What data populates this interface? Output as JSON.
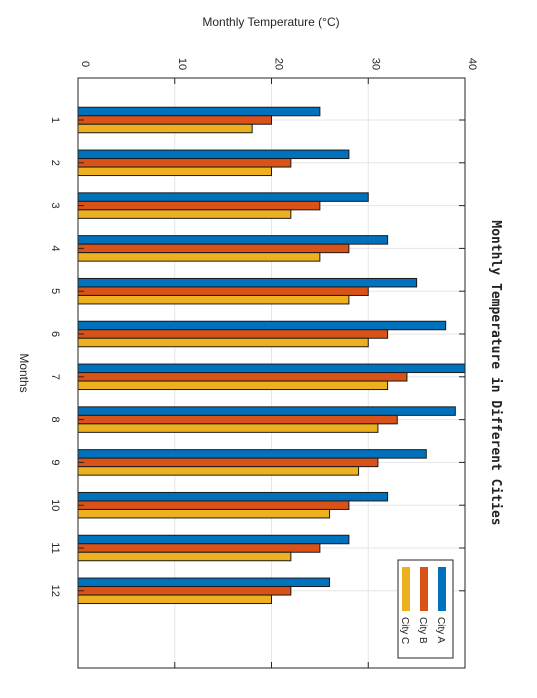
{
  "chart_data": {
    "type": "bar",
    "orientation": "rotated-grouped-bar",
    "title": "Monthly Temperature in Different Cities",
    "xlabel": "Months",
    "ylabel": "Monthly Temperature (°C)",
    "categories": [
      "1",
      "2",
      "3",
      "4",
      "5",
      "6",
      "7",
      "8",
      "9",
      "10",
      "11",
      "12"
    ],
    "ylim": [
      0,
      40
    ],
    "yticks": [
      "0",
      "10",
      "20",
      "30",
      "40"
    ],
    "grid": true,
    "legend_position": "bottom-right",
    "series": [
      {
        "name": "City A",
        "color": "#0072BD",
        "values": [
          25,
          28,
          30,
          32,
          35,
          38,
          40,
          39,
          36,
          32,
          28,
          26
        ]
      },
      {
        "name": "City B",
        "color": "#D95319",
        "values": [
          20,
          22,
          25,
          28,
          30,
          32,
          34,
          33,
          31,
          28,
          25,
          22
        ]
      },
      {
        "name": "City C",
        "color": "#EDB120",
        "values": [
          18,
          20,
          22,
          25,
          28,
          30,
          32,
          31,
          29,
          26,
          22,
          20
        ]
      }
    ]
  }
}
